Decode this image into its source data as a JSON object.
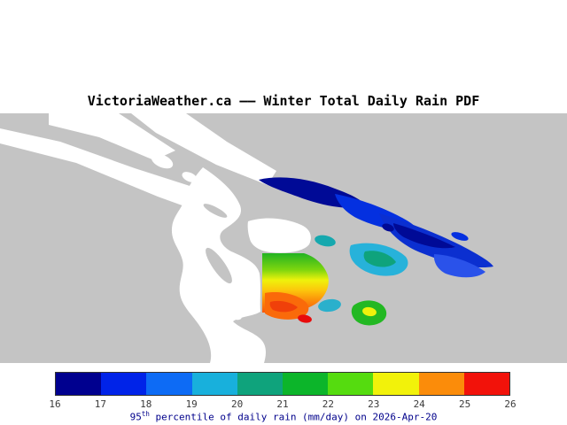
{
  "title": "VictoriaWeather.ca –– Winter Total Daily Rain PDF",
  "colors": {
    "title_color": "#000000",
    "land_color": "#c4c4c4",
    "water_color": "#ffffff",
    "tick_color": "#3a3a3a",
    "caption_color": "#00008b",
    "colorbar_border": "#333333"
  },
  "colorbar": {
    "ticks": [
      "16",
      "17",
      "18",
      "19",
      "20",
      "21",
      "22",
      "23",
      "24",
      "25",
      "26"
    ],
    "segment_colors": [
      "#00008f",
      "#0023e8",
      "#0d6bf5",
      "#18b0dc",
      "#0fa37c",
      "#0cb52a",
      "#55dc0f",
      "#f2f20a",
      "#fb8c0a",
      "#f2120a"
    ]
  },
  "caption": {
    "prefix": "95",
    "sup": "th",
    "rest": " percentile of daily rain (mm/day) on 2026-Apr-20"
  },
  "chart_data": {
    "type": "heatmap",
    "title": "VictoriaWeather.ca –– Winter Total Daily Rain PDF",
    "value_label": "95th percentile of daily rain (mm/day)",
    "date": "2026-Apr-20",
    "units": "mm/day",
    "legend_position": "bottom",
    "scale": {
      "min": 16,
      "max": 26,
      "ticks": [
        16,
        17,
        18,
        19,
        20,
        21,
        22,
        23,
        24,
        25,
        26
      ],
      "segment_colors": [
        "#00008f",
        "#0023e8",
        "#0d6bf5",
        "#18b0dc",
        "#0fa37c",
        "#0cb52a",
        "#55dc0f",
        "#f2f20a",
        "#fb8c0a",
        "#f2120a"
      ]
    },
    "regions": [
      {
        "area": "north-east elongated island band",
        "approx_value": "16-18"
      },
      {
        "area": "far east island patch",
        "approx_value": "17-18"
      },
      {
        "area": "east-central island group",
        "approx_value": "18-21"
      },
      {
        "area": "central data block (north edge)",
        "approx_value": "21-22"
      },
      {
        "area": "central data block (middle)",
        "approx_value": "22-24"
      },
      {
        "area": "central data block (south-west)",
        "approx_value": "24-26"
      },
      {
        "area": "small south-central spot",
        "approx_value": "25-26"
      },
      {
        "area": "small south-east green/yellow patch",
        "approx_value": "21-24"
      },
      {
        "area": "small cyan patch south of block",
        "approx_value": "19-20"
      }
    ]
  }
}
